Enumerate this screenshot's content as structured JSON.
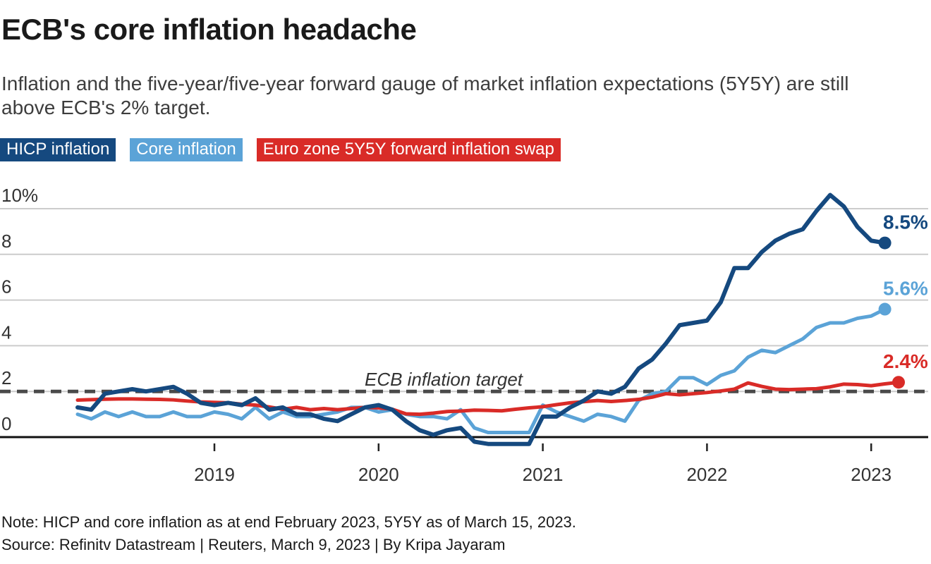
{
  "header": {
    "title": "ECB's core inflation headache",
    "subtitle": "Inflation and the five-year/five-year forward gauge of market inflation expectations (5Y5Y) are still above ECB's 2% target.",
    "subtitle_lines": [
      "Inflation and the five-year/five-year forward gauge of market inflation expectations (5Y5Y) are still",
      "above ECB's 2% target."
    ]
  },
  "legend": {
    "items": [
      {
        "label": "HICP inflation",
        "color": "#15497f"
      },
      {
        "label": "Core inflation",
        "color": "#5ba3d7"
      },
      {
        "label": "Euro zone 5Y5Y forward inflation swap",
        "color": "#d92b27"
      }
    ]
  },
  "chart_data": {
    "type": "line",
    "start_month": "2018-03",
    "frequency": "monthly",
    "ylim": [
      0,
      10
    ],
    "grid": "horizontal",
    "yticks": [
      {
        "label": "10%",
        "value": 10
      },
      {
        "label": "8",
        "value": 8
      },
      {
        "label": "6",
        "value": 6
      },
      {
        "label": "4",
        "value": 4
      },
      {
        "label": "2",
        "value": 2
      },
      {
        "label": "0",
        "value": 0
      }
    ],
    "xticks": [
      {
        "label": "2019",
        "month_index": 10
      },
      {
        "label": "2020",
        "month_index": 22
      },
      {
        "label": "2021",
        "month_index": 34
      },
      {
        "label": "2022",
        "month_index": 46
      },
      {
        "label": "2023",
        "month_index": 58
      }
    ],
    "target_line": {
      "value": 2,
      "label": "ECB inflation target",
      "style": "dashed",
      "color": "#4a4a4a"
    },
    "series": [
      {
        "name": "HICP inflation",
        "color": "#15497f",
        "end_label": "8.5%",
        "values": [
          1.3,
          1.2,
          1.9,
          2.0,
          2.1,
          2.0,
          2.1,
          2.2,
          1.9,
          1.5,
          1.4,
          1.5,
          1.4,
          1.7,
          1.2,
          1.3,
          1.0,
          1.0,
          0.8,
          0.7,
          1.0,
          1.3,
          1.4,
          1.2,
          0.7,
          0.3,
          0.1,
          0.3,
          0.4,
          -0.2,
          -0.3,
          -0.3,
          -0.3,
          -0.3,
          0.9,
          0.9,
          1.3,
          1.6,
          2.0,
          1.9,
          2.2,
          3.0,
          3.4,
          4.1,
          4.9,
          5.0,
          5.1,
          5.9,
          7.4,
          7.4,
          8.1,
          8.6,
          8.9,
          9.1,
          9.9,
          10.6,
          10.1,
          9.2,
          8.6,
          8.5
        ]
      },
      {
        "name": "Core inflation",
        "color": "#5ba3d7",
        "end_label": "5.6%",
        "values": [
          1.0,
          0.8,
          1.1,
          0.9,
          1.1,
          0.9,
          0.9,
          1.1,
          0.9,
          0.9,
          1.1,
          1.0,
          0.8,
          1.3,
          0.8,
          1.1,
          0.9,
          0.9,
          1.0,
          1.1,
          1.3,
          1.3,
          1.1,
          1.2,
          1.0,
          0.9,
          0.9,
          0.8,
          1.2,
          0.4,
          0.2,
          0.2,
          0.2,
          0.2,
          1.4,
          1.1,
          0.9,
          0.7,
          1.0,
          0.9,
          0.7,
          1.6,
          1.9,
          2.0,
          2.6,
          2.6,
          2.3,
          2.7,
          2.9,
          3.5,
          3.8,
          3.7,
          4.0,
          4.3,
          4.8,
          5.0,
          5.0,
          5.2,
          5.3,
          5.6
        ]
      },
      {
        "name": "Euro zone 5Y5Y forward inflation swap",
        "color": "#d92b27",
        "end_label": "2.4%",
        "values": [
          1.62,
          1.64,
          1.66,
          1.67,
          1.67,
          1.66,
          1.65,
          1.63,
          1.58,
          1.54,
          1.52,
          1.5,
          1.44,
          1.4,
          1.32,
          1.22,
          1.3,
          1.2,
          1.25,
          1.2,
          1.25,
          1.3,
          1.28,
          1.22,
          1.02,
          1.0,
          1.05,
          1.12,
          1.14,
          1.18,
          1.17,
          1.15,
          1.22,
          1.28,
          1.33,
          1.42,
          1.5,
          1.55,
          1.6,
          1.56,
          1.6,
          1.65,
          1.75,
          1.9,
          1.85,
          1.9,
          1.95,
          2.02,
          2.1,
          2.37,
          2.22,
          2.1,
          2.08,
          2.1,
          2.12,
          2.2,
          2.32,
          2.3,
          2.25,
          2.33,
          2.4
        ]
      }
    ]
  },
  "footer": {
    "note": "Note: HICP and core inflation as at end February 2023, 5Y5Y as of March 15, 2023.",
    "source": "Source: Refinitv Datastream | Reuters, March 9, 2023 | By Kripa Jayaram"
  }
}
